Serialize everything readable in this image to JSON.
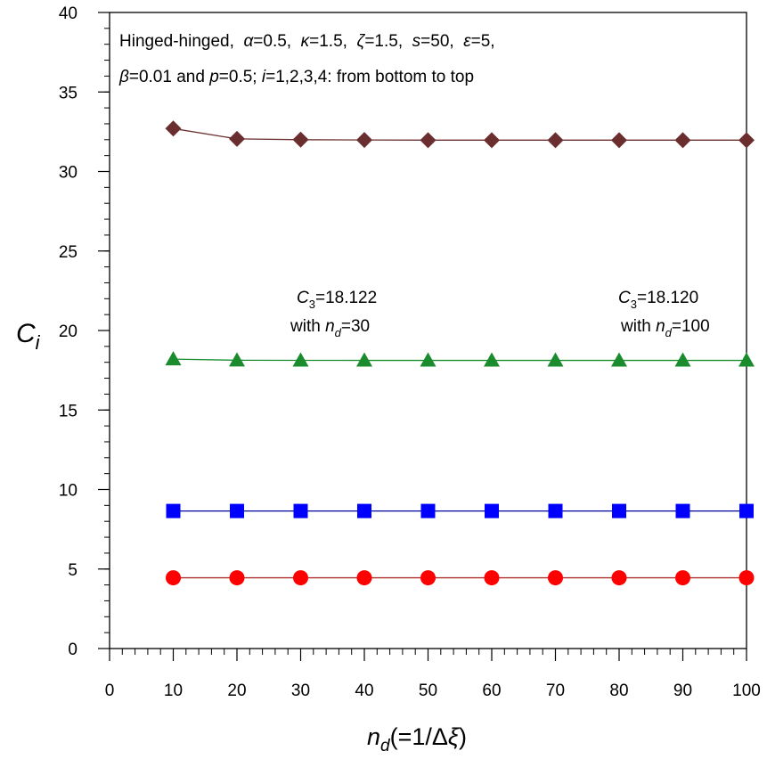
{
  "chart_data": {
    "type": "line",
    "title": "",
    "annotation_lines": [
      [
        {
          "text": "Hinged-hinged,  ",
          "style": "normal"
        },
        {
          "text": "α",
          "style": "italic"
        },
        {
          "text": "=0.5,  ",
          "style": "normal"
        },
        {
          "text": "κ",
          "style": "italic"
        },
        {
          "text": "=1.5,  ",
          "style": "normal"
        },
        {
          "text": "ζ",
          "style": "italic"
        },
        {
          "text": "=1.5,  ",
          "style": "normal"
        },
        {
          "text": "s",
          "style": "italic"
        },
        {
          "text": "=50,  ",
          "style": "normal"
        },
        {
          "text": "ε",
          "style": "italic"
        },
        {
          "text": "=5,",
          "style": "normal"
        }
      ],
      [
        {
          "text": "β",
          "style": "italic"
        },
        {
          "text": "=0.01 and ",
          "style": "normal"
        },
        {
          "text": "p",
          "style": "italic"
        },
        {
          "text": "=0.5; ",
          "style": "normal"
        },
        {
          "text": "i",
          "style": "italic"
        },
        {
          "text": "=1,2,3,4: from bottom to top",
          "style": "normal"
        }
      ]
    ],
    "note_left": {
      "line1": {
        "var": "C",
        "sub": "3",
        "value": "=18.122"
      },
      "line2": {
        "text": "with ",
        "var": "n",
        "sub": "d",
        "value": "=30"
      }
    },
    "note_right": {
      "line1": {
        "var": "C",
        "sub": "3",
        "value": "=18.120"
      },
      "line2": {
        "text": "with ",
        "var": "n",
        "sub": "d",
        "value": "=100"
      }
    },
    "xlabel": {
      "var": "n",
      "sub": "d",
      "rest": "(=1/Δ",
      "greek": "ξ",
      "close": ")"
    },
    "ylabel": {
      "var": "C",
      "sub": "i"
    },
    "xlim": [
      0,
      100
    ],
    "ylim": [
      0,
      40
    ],
    "xticks": [
      0,
      10,
      20,
      30,
      40,
      50,
      60,
      70,
      80,
      90,
      100
    ],
    "yticks": [
      0,
      5,
      10,
      15,
      20,
      25,
      30,
      35,
      40
    ],
    "x_minor_step": 2,
    "y_minor_step": 1,
    "grid": false,
    "x": [
      10,
      20,
      30,
      40,
      50,
      60,
      70,
      80,
      90,
      100
    ],
    "series": [
      {
        "marker": "circle",
        "color": "#ff0000",
        "line_color": "#b03030",
        "values": [
          4.45,
          4.45,
          4.45,
          4.45,
          4.45,
          4.45,
          4.45,
          4.45,
          4.45,
          4.45
        ]
      },
      {
        "marker": "square",
        "color": "#0000ff",
        "line_color": "#0000a0",
        "values": [
          8.65,
          8.65,
          8.65,
          8.65,
          8.65,
          8.65,
          8.65,
          8.65,
          8.65,
          8.65
        ]
      },
      {
        "marker": "triangle",
        "color": "#1a8c2e",
        "line_color": "#1a8c2e",
        "values": [
          18.2,
          18.13,
          18.122,
          18.121,
          18.12,
          18.12,
          18.12,
          18.12,
          18.12,
          18.12
        ]
      },
      {
        "marker": "diamond",
        "color": "#6b2e2e",
        "line_color": "#6b2e2e",
        "values": [
          32.7,
          32.05,
          32.0,
          31.98,
          31.97,
          31.97,
          31.97,
          31.97,
          31.97,
          31.97
        ]
      }
    ]
  }
}
